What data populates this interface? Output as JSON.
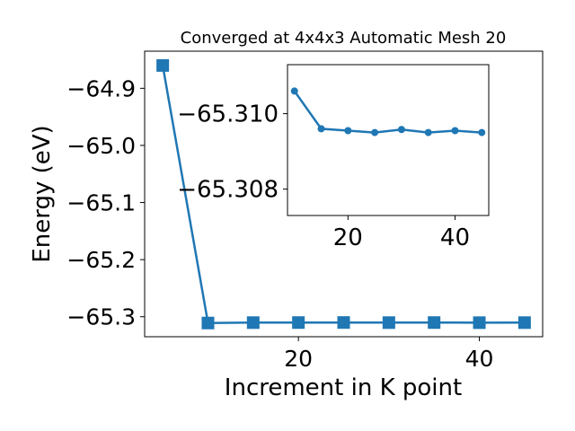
{
  "chart_data": [
    {
      "type": "line",
      "title": "Converged at 4x4x3 Automatic Mesh 20",
      "xlabel": "Increment in K point",
      "ylabel": "Energy (eV)",
      "xlim": [
        3,
        47
      ],
      "ylim": [
        -65.335,
        -64.835
      ],
      "x_ticks": [
        20,
        40
      ],
      "y_ticks": [
        -64.9,
        -65.0,
        -65.1,
        -65.2,
        -65.3
      ],
      "x_tick_labels": [
        "20",
        "40"
      ],
      "y_tick_labels": [
        "−64.9",
        "−65.0",
        "−65.1",
        "−65.2",
        "−65.3"
      ],
      "marker": "square",
      "color": "#1f77b4",
      "grid": false,
      "series": [
        {
          "x": [
            5,
            10,
            15,
            20,
            25,
            30,
            35,
            40,
            45
          ],
          "y": [
            -64.86,
            -65.311,
            -65.3103,
            -65.3102,
            -65.3101,
            -65.3103,
            -65.3102,
            -65.3104,
            -65.3103
          ]
        }
      ]
    },
    {
      "type": "line",
      "title": "",
      "xlabel": "",
      "ylabel": "",
      "xlim": [
        8.7,
        46.3
      ],
      "ylim": [
        -65.3073,
        -65.3113
      ],
      "x_ticks": [
        20,
        40
      ],
      "y_ticks": [
        -65.31,
        -65.308
      ],
      "x_tick_labels": [
        "20",
        "40"
      ],
      "y_tick_labels": [
        "−65.310",
        "−65.308"
      ],
      "marker": "circle",
      "color": "#1f77b4",
      "grid": false,
      "series": [
        {
          "x": [
            10,
            15,
            20,
            25,
            30,
            35,
            40,
            45
          ],
          "y": [
            -65.3106,
            -65.3096,
            -65.30955,
            -65.3095,
            -65.30958,
            -65.3095,
            -65.30955,
            -65.3095
          ]
        }
      ]
    }
  ]
}
